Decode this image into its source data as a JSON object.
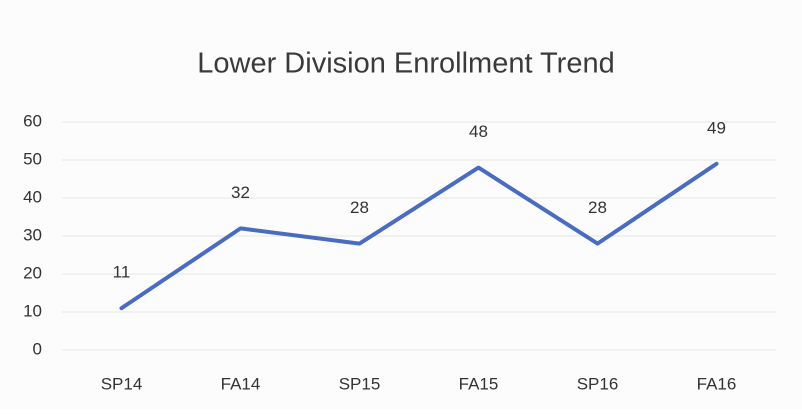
{
  "chart_data": {
    "type": "line",
    "title": "Lower Division Enrollment Trend",
    "categories": [
      "SP14",
      "FA14",
      "SP15",
      "FA15",
      "SP16",
      "FA16"
    ],
    "values": [
      11,
      32,
      28,
      48,
      28,
      49
    ],
    "color": "#4a6cc0",
    "ylim": [
      0,
      60
    ],
    "yticks": [
      0,
      10,
      20,
      30,
      40,
      50,
      60
    ],
    "grid": true,
    "data_labels": true
  }
}
